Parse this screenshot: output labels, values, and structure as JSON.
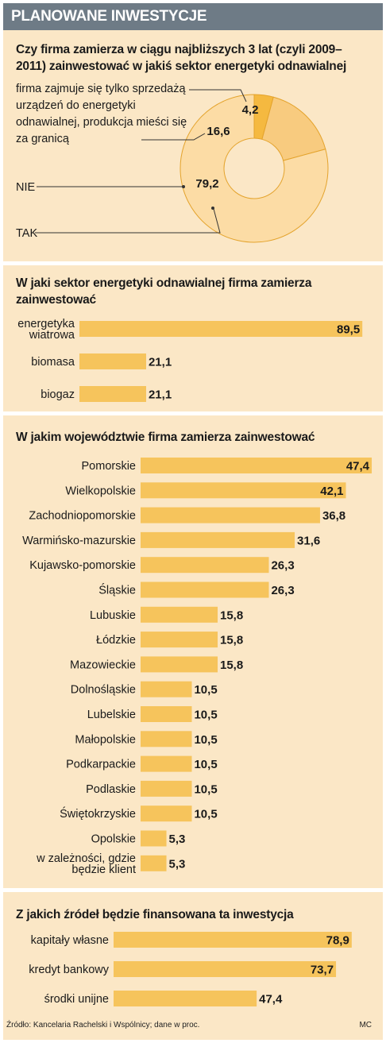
{
  "header": {
    "title": "PLANOWANE INWESTYCJE"
  },
  "colors": {
    "bar": "#f6c45c",
    "pie_light": "#fcdca5",
    "pie_mid": "#f8cb7f",
    "pie_dark": "#f5b940",
    "background": "#fbe7c6",
    "header": "#6e7b86"
  },
  "chart_data": [
    {
      "type": "pie",
      "title": "Czy firma zamierza w ciągu najbliższych 3 lat (czyli 2009–2011) zainwestować w jakiś sektor energetyki odnawialnej",
      "slices": [
        {
          "label": "firma zajmuje się tylko sprzedażą urządzeń do energetyki odnawialnej, produkcja mieści się za granicą",
          "value": 4.2,
          "value_label": "4,2"
        },
        {
          "label": "NIE",
          "value": 16.6,
          "value_label": "16,6"
        },
        {
          "label": "TAK",
          "value": 79.2,
          "value_label": "79,2"
        }
      ]
    },
    {
      "type": "bar",
      "orientation": "horizontal",
      "title": "W jaki sektor energetyki odnawialnej firma zamierza zainwestować",
      "categories": [
        "energetyka wiatrowa",
        "biomasa",
        "biogaz"
      ],
      "values": [
        89.5,
        21.1,
        21.1
      ],
      "value_labels": [
        "89,5",
        "21,1",
        "21,1"
      ]
    },
    {
      "type": "bar",
      "orientation": "horizontal",
      "title": "W jakim województwie firma zamierza zainwestować",
      "categories": [
        "Pomorskie",
        "Wielkopolskie",
        "Zachodniopomorskie",
        "Warmińsko-mazurskie",
        "Kujawsko-pomorskie",
        "Śląskie",
        "Lubuskie",
        "Łódzkie",
        "Mazowieckie",
        "Dolnośląskie",
        "Lubelskie",
        "Małopolskie",
        "Podkarpackie",
        "Podlaskie",
        "Świętokrzyskie",
        "Opolskie",
        "w zależności, gdzie będzie klient"
      ],
      "values": [
        47.4,
        42.1,
        36.8,
        31.6,
        26.3,
        26.3,
        15.8,
        15.8,
        15.8,
        10.5,
        10.5,
        10.5,
        10.5,
        10.5,
        10.5,
        5.3,
        5.3
      ],
      "value_labels": [
        "47,4",
        "42,1",
        "36,8",
        "31,6",
        "26,3",
        "26,3",
        "15,8",
        "15,8",
        "15,8",
        "10,5",
        "10,5",
        "10,5",
        "10,5",
        "10,5",
        "10,5",
        "5,3",
        "5,3"
      ]
    },
    {
      "type": "bar",
      "orientation": "horizontal",
      "title": "Z jakich źródeł będzie finansowana ta inwestycja",
      "categories": [
        "kapitały własne",
        "kredyt bankowy",
        "środki unijne"
      ],
      "values": [
        78.9,
        73.7,
        47.4
      ],
      "value_labels": [
        "78,9",
        "73,7",
        "47,4"
      ]
    }
  ],
  "footer": {
    "source": "Źródło: Kancelaria Rachelski i Wspólnicy; dane w proc.",
    "author": "MC"
  }
}
